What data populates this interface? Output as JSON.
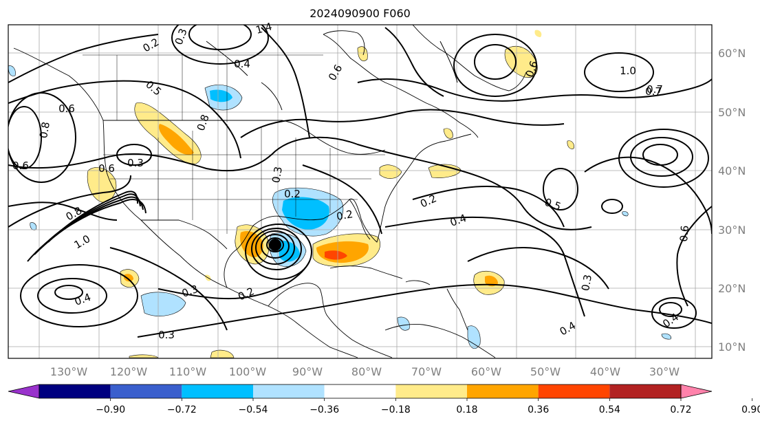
{
  "title": "2024090900 F060",
  "latitude_labels": [
    "60°N",
    "50°N",
    "40°N",
    "30°N",
    "20°N",
    "10°N"
  ],
  "longitude_labels": [
    "130°W",
    "120°W",
    "110°W",
    "100°W",
    "90°W",
    "80°W",
    "70°W",
    "60°W",
    "50°W",
    "40°W",
    "30°W"
  ],
  "colorbar": {
    "colors": [
      "#9932cc",
      "#000080",
      "#3a5fcd",
      "#00bfff",
      "#b0e2ff",
      "#ffffff",
      "#ffeb8a",
      "#ffa500",
      "#ff4500",
      "#b22222",
      "#ff82ab"
    ],
    "tick_labels": [
      "−0.90",
      "−0.72",
      "−0.54",
      "−0.36",
      "−0.18",
      "0.18",
      "0.36",
      "0.54",
      "0.72",
      "0.90"
    ]
  },
  "contour_labels": [
    "1.4",
    "0.3",
    "0.2",
    "0.4",
    "0.6",
    "0.5",
    "0.8",
    "0.6",
    "0.6",
    "0.7",
    "0.8",
    "0.3",
    "0.2",
    "0.8",
    "1.0",
    "0.2",
    "0.3",
    "0.2",
    "0.4",
    "0.3",
    "0.2",
    "0.4",
    "0.4",
    "0.5",
    "0.6",
    "1.0",
    "0.7",
    "0.6",
    "0.3",
    "0.4",
    "0.3",
    "0.6"
  ],
  "hurricane_symbol": "●"
}
